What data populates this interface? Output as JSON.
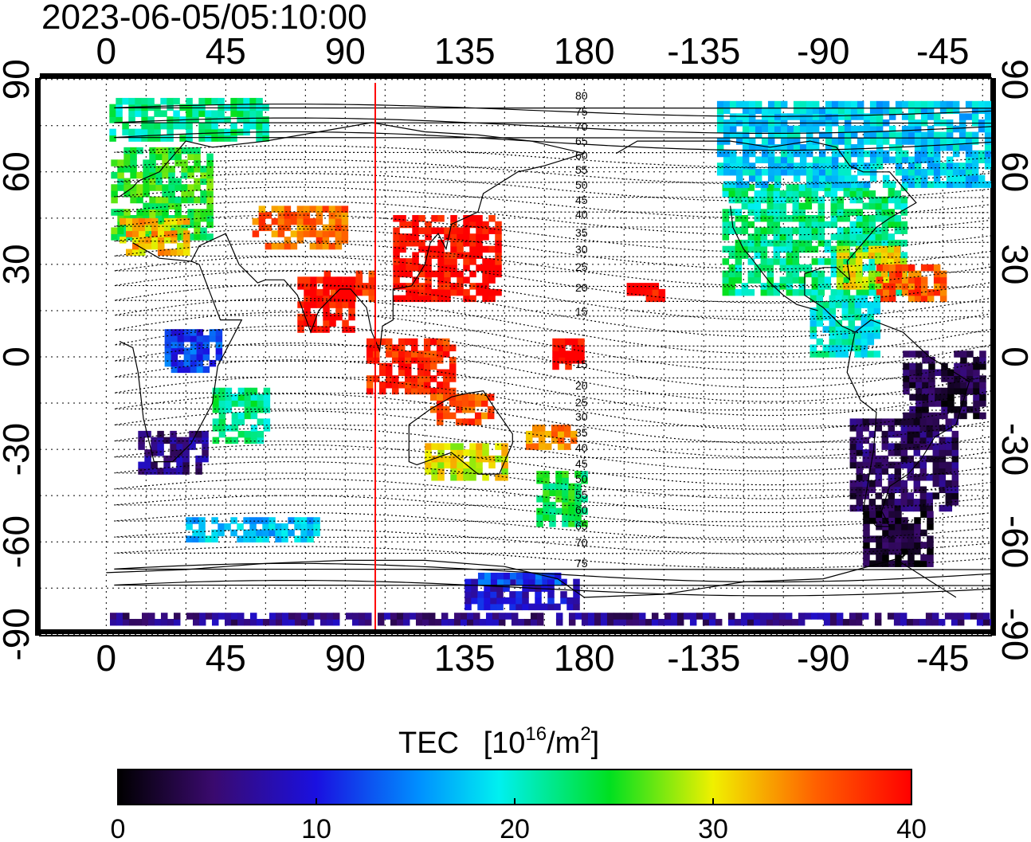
{
  "timestamp": "2023-06-05/05:10:00",
  "axes": {
    "lon_ticks": [
      "0",
      "45",
      "90",
      "135",
      "180",
      "-135",
      "-90",
      "-45"
    ],
    "lat_ticks": [
      "90",
      "60",
      "30",
      "0",
      "-30",
      "-60",
      "-90"
    ]
  },
  "contour_labels": [
    "80",
    "75",
    "70",
    "65",
    "60",
    "55",
    "50",
    "45",
    "40",
    "35",
    "30",
    "25",
    "20",
    "15",
    "15",
    "20",
    "25",
    "30",
    "35",
    "40",
    "45",
    "50",
    "55",
    "60",
    "65",
    "70",
    "75"
  ],
  "subsolar_line": {
    "longitude": 102,
    "color": "#ff0000"
  },
  "colorbar": {
    "label": "TEC",
    "unit_text": "[10",
    "unit_exp": "16",
    "unit_text2": "/m",
    "unit_exp2": "2",
    "unit_close": "]",
    "ticks": [
      "0",
      "10",
      "20",
      "30",
      "40"
    ],
    "range": [
      0,
      40
    ]
  },
  "tec_regions": [
    {
      "region": "arctic-europe",
      "tec": 22
    },
    {
      "region": "europe",
      "tec": 25
    },
    {
      "region": "south-europe",
      "tec": 32
    },
    {
      "region": "central-asia",
      "tec": 35
    },
    {
      "region": "mid-asia",
      "tec": 38
    },
    {
      "region": "japan-china",
      "tec": 40
    },
    {
      "region": "india",
      "tec": 40
    },
    {
      "region": "indonesia",
      "tec": 38
    },
    {
      "region": "australia-north",
      "tec": 36
    },
    {
      "region": "australia",
      "tec": 30
    },
    {
      "region": "new-zealand",
      "tec": 24
    },
    {
      "region": "tasman-sea",
      "tec": 34
    },
    {
      "region": "hawaii",
      "tec": 40
    },
    {
      "region": "pacific-equator",
      "tec": 40
    },
    {
      "region": "africa-east",
      "tec": 12
    },
    {
      "region": "southern-africa",
      "tec": 6
    },
    {
      "region": "madagascar",
      "tec": 22
    },
    {
      "region": "west-africa",
      "tec": 4
    },
    {
      "region": "north-america",
      "tec": 22
    },
    {
      "region": "canada-north",
      "tec": 18
    },
    {
      "region": "us-southeast",
      "tec": 30
    },
    {
      "region": "caribbean",
      "tec": 36
    },
    {
      "region": "central-america",
      "tec": 20
    },
    {
      "region": "south-america-north",
      "tec": 3
    },
    {
      "region": "south-america",
      "tec": 4
    },
    {
      "region": "patagonia",
      "tec": 2
    },
    {
      "region": "antarctica-pacific",
      "tec": 9
    },
    {
      "region": "antarctica-ross",
      "tec": 12
    },
    {
      "region": "antarctic-strip",
      "tec": 6
    },
    {
      "region": "south-indian-ocean",
      "tec": 17
    }
  ]
}
